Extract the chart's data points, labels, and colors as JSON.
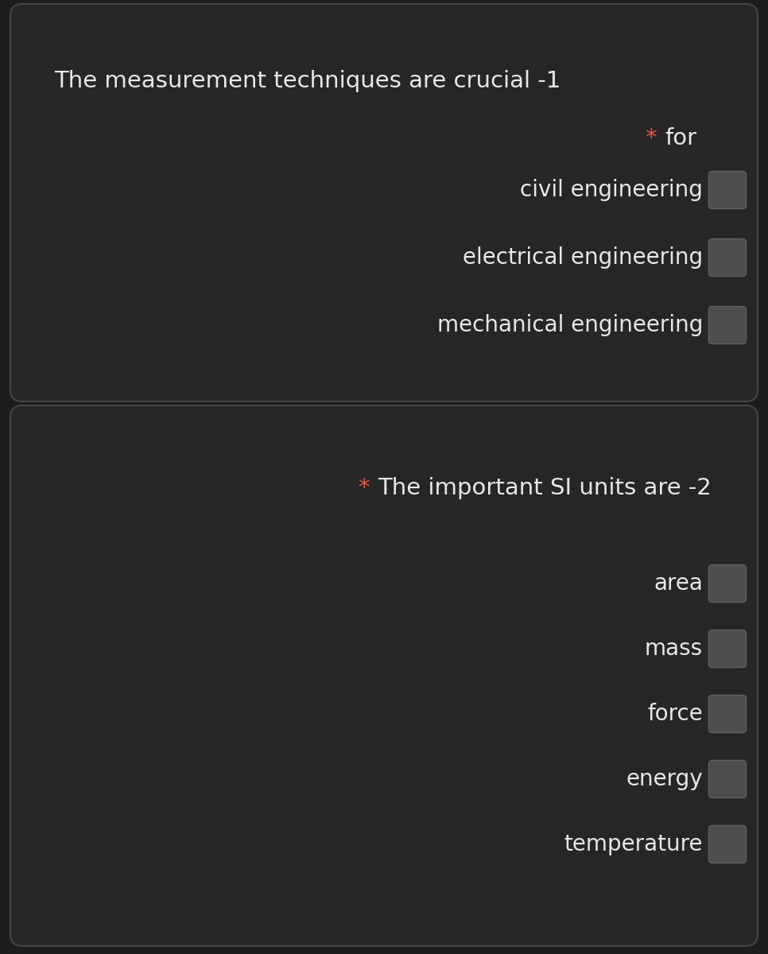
{
  "bg_color": "#1c1c1c",
  "card_color": "#262626",
  "card_border_color": "#444444",
  "text_color": "#e8e8e8",
  "star_color": "#e05848",
  "checkbox_color": "#4d4d4d",
  "checkbox_border_color": "#606060",
  "card1_title": "The measurement techniques are crucial -1",
  "card1_subtitle_star": "* ",
  "card1_subtitle_text": "for",
  "card1_items": [
    "civil engineering",
    "electrical engineering",
    "mechanical engineering"
  ],
  "card2_title_star": "* ",
  "card2_title_text": "The important SI units are -2",
  "card2_items": [
    "area",
    "mass",
    "force",
    "energy",
    "temperature"
  ],
  "title_fontsize": 21,
  "subtitle_fontsize": 21,
  "item_fontsize": 20,
  "card2_title_fontsize": 21,
  "fig_width": 9.66,
  "fig_height": 12.0,
  "dpi": 100
}
